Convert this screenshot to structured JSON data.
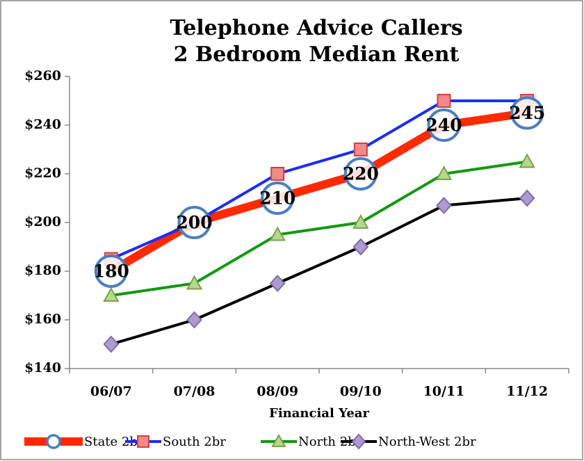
{
  "chart_data": {
    "type": "line",
    "title": [
      "Telephone Advice Callers",
      "2 Bedroom Median Rent"
    ],
    "x_label": "Financial Year",
    "categories": [
      "06/07",
      "07/08",
      "08/09",
      "09/10",
      "10/11",
      "11/12"
    ],
    "series": [
      {
        "name": "State 2br",
        "color": "#ff2a00",
        "marker": "circle",
        "data_labels": true,
        "values": [
          180,
          200,
          210,
          220,
          240,
          245
        ]
      },
      {
        "name": "South 2br",
        "color": "#1a2cff",
        "marker": "square",
        "values": [
          185,
          200,
          220,
          230,
          250,
          250
        ]
      },
      {
        "name": "North 2br",
        "color": "#119911",
        "marker": "triangle",
        "values": [
          170,
          175,
          195,
          200,
          220,
          225
        ]
      },
      {
        "name": "North-West 2br",
        "color": "#000000",
        "marker": "diamond",
        "values": [
          150,
          160,
          175,
          190,
          207,
          210
        ]
      }
    ],
    "ylim": [
      140,
      260
    ],
    "yticks": [
      {
        "value": 140,
        "label": "$140"
      },
      {
        "value": 160,
        "label": "$160"
      },
      {
        "value": 180,
        "label": "$180"
      },
      {
        "value": 200,
        "label": "$200"
      },
      {
        "value": 220,
        "label": "$220"
      },
      {
        "value": 240,
        "label": "$240"
      },
      {
        "value": 260,
        "label": "$260"
      }
    ],
    "legend": "bottom",
    "grid": false
  }
}
